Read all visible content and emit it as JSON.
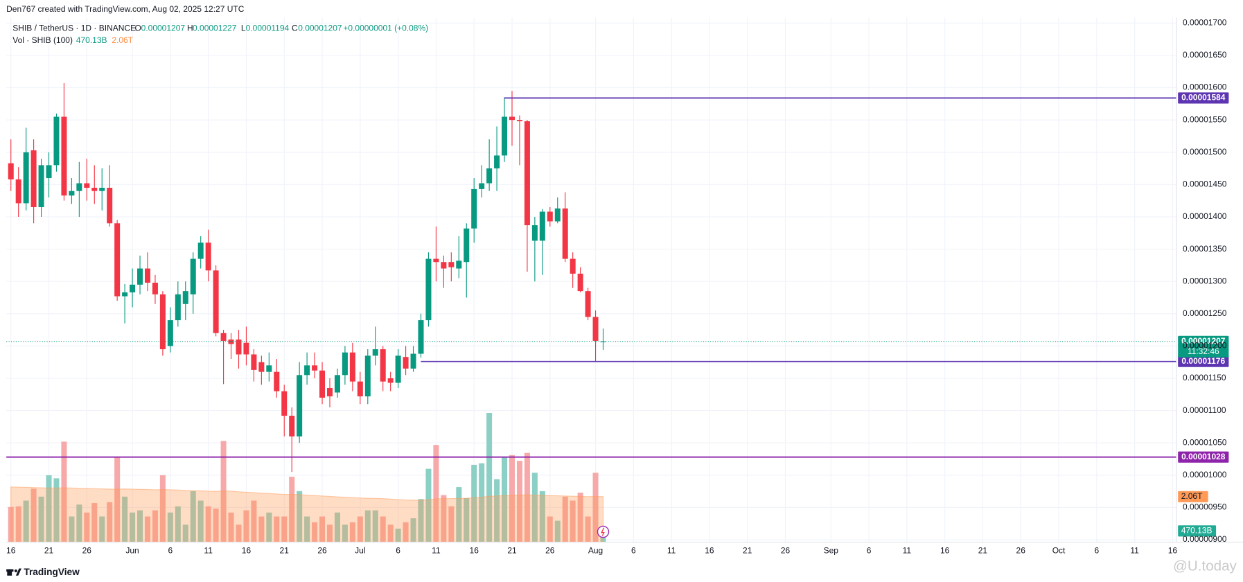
{
  "header": {
    "credit": "Den767 created with TradingView.com, Aug 02, 2025 12:27 UTC"
  },
  "legend": {
    "symbol": "SHIB / TetherUS · 1D · BINANCE",
    "o_key": "O",
    "o": "0.00001207",
    "h_key": "H",
    "h": "0.00001227",
    "l_key": "L",
    "l": "0.00001194",
    "c_key": "C",
    "c": "0.00001207",
    "change": "+0.00000001 (+0.08%)",
    "volume_name": "Vol · SHIB (100)",
    "volume": "470.13B",
    "volume_ma": "2.06T"
  },
  "chart_data": {
    "type": "candlestick",
    "up_color": "#089981",
    "down_color": "#f23645",
    "open": [
      1.483e-05,
      1.458e-05,
      1.421e-05,
      1.503e-05,
      1.415e-05,
      1.46e-05,
      1.48e-05,
      1.555e-05,
      1.433e-05,
      1.44e-05,
      1.452e-05,
      1.445e-05,
      1.44e-05,
      1.445e-05,
      1.39e-05,
      1.277e-05,
      1.283e-05,
      1.295e-05,
      1.32e-05,
      1.298e-05,
      1.28e-05,
      1.2e-05,
      1.24e-05,
      1.265e-05,
      1.28e-05,
      1.335e-05,
      1.36e-05,
      1.317e-05,
      1.22e-05,
      1.21e-05,
      1.21e-05,
      1.205e-05,
      1.187e-05,
      1.175e-05,
      1.16e-05,
      1.16e-05,
      1.13e-05,
      1.092e-05,
      1.06e-05,
      1.155e-05,
      1.17e-05,
      1.162e-05,
      1.135e-05,
      1.128e-05,
      1.155e-05,
      1.19e-05,
      1.145e-05,
      1.122e-05,
      1.185e-05,
      1.195e-05,
      1.15e-05,
      1.143e-05,
      1.183e-05,
      1.165e-05,
      1.188e-05,
      1.24e-05,
      1.335e-05,
      1.33e-05,
      1.33e-05,
      1.32e-05,
      1.33e-05,
      1.382e-05,
      1.443e-05,
      1.452e-05,
      1.475e-05,
      1.495e-05,
      1.555e-05,
      1.55e-05,
      1.548e-05,
      1.363e-05,
      1.363e-05,
      1.408e-05,
      1.393e-05,
      1.413e-05,
      1.335e-05,
      1.312e-05,
      1.285e-05,
      1.245e-05,
      1.206e-05
    ],
    "high": [
      1.52e-05,
      1.477e-05,
      1.538e-05,
      1.52e-05,
      1.49e-05,
      1.5e-05,
      1.56e-05,
      1.607e-05,
      1.46e-05,
      1.485e-05,
      1.49e-05,
      1.48e-05,
      1.475e-05,
      1.48e-05,
      1.395e-05,
      1.296e-05,
      1.32e-05,
      1.34e-05,
      1.345e-05,
      1.31e-05,
      1.285e-05,
      1.26e-05,
      1.3e-05,
      1.3e-05,
      1.345e-05,
      1.37e-05,
      1.38e-05,
      1.325e-05,
      1.225e-05,
      1.22e-05,
      1.225e-05,
      1.23e-05,
      1.195e-05,
      1.185e-05,
      1.19e-05,
      1.18e-05,
      1.14e-05,
      1.105e-05,
      1.175e-05,
      1.19e-05,
      1.19e-05,
      1.175e-05,
      1.15e-05,
      1.165e-05,
      1.2e-05,
      1.205e-05,
      1.16e-05,
      1.195e-05,
      1.23e-05,
      1.2e-05,
      1.16e-05,
      1.195e-05,
      1.2e-05,
      1.2e-05,
      1.25e-05,
      1.345e-05,
      1.385e-05,
      1.34e-05,
      1.345e-05,
      1.37e-05,
      1.39e-05,
      1.46e-05,
      1.48e-05,
      1.52e-05,
      1.54e-05,
      1.585e-05,
      1.595e-05,
      1.557e-05,
      1.55e-05,
      1.4e-05,
      1.412e-05,
      1.415e-05,
      1.43e-05,
      1.438e-05,
      1.345e-05,
      1.322e-05,
      1.29e-05,
      1.255e-05,
      1.227e-05
    ],
    "low": [
      1.44e-05,
      1.4e-05,
      1.41e-05,
      1.39e-05,
      1.4e-05,
      1.43e-05,
      1.47e-05,
      1.425e-05,
      1.42e-05,
      1.4e-05,
      1.425e-05,
      1.42e-05,
      1.41e-05,
      1.385e-05,
      1.27e-05,
      1.235e-05,
      1.26e-05,
      1.28e-05,
      1.285e-05,
      1.265e-05,
      1.185e-05,
      1.19e-05,
      1.23e-05,
      1.24e-05,
      1.25e-05,
      1.32e-05,
      1.3e-05,
      1.215e-05,
      1.141e-05,
      1.18e-05,
      1.165e-05,
      1.17e-05,
      1.145e-05,
      1.14e-05,
      1.145e-05,
      1.12e-05,
      1.06e-05,
      1.005e-05,
      1.05e-05,
      1.14e-05,
      1.15e-05,
      1.11e-05,
      1.105e-05,
      1.12e-05,
      1.14e-05,
      1.13e-05,
      1.11e-05,
      1.11e-05,
      1.17e-05,
      1.13e-05,
      1.13e-05,
      1.135e-05,
      1.155e-05,
      1.16e-05,
      1.182e-05,
      1.23e-05,
      1.3e-05,
      1.29e-05,
      1.3e-05,
      1.305e-05,
      1.275e-05,
      1.36e-05,
      1.43e-05,
      1.44e-05,
      1.44e-05,
      1.485e-05,
      1.51e-05,
      1.48e-05,
      1.315e-05,
      1.3e-05,
      1.31e-05,
      1.385e-05,
      1.39e-05,
      1.33e-05,
      1.29e-05,
      1.283e-05,
      1.24e-05,
      1.176e-05,
      1.194e-05
    ],
    "close": [
      1.458e-05,
      1.421e-05,
      1.5e-05,
      1.415e-05,
      1.48e-05,
      1.48e-05,
      1.555e-05,
      1.433e-05,
      1.44e-05,
      1.452e-05,
      1.445e-05,
      1.44e-05,
      1.445e-05,
      1.39e-05,
      1.277e-05,
      1.283e-05,
      1.295e-05,
      1.32e-05,
      1.298e-05,
      1.28e-05,
      1.195e-05,
      1.24e-05,
      1.28e-05,
      1.285e-05,
      1.335e-05,
      1.36e-05,
      1.317e-05,
      1.22e-05,
      1.208e-05,
      1.203e-05,
      1.187e-05,
      1.187e-05,
      1.163e-05,
      1.16e-05,
      1.17e-05,
      1.13e-05,
      1.092e-05,
      1.06e-05,
      1.155e-05,
      1.17e-05,
      1.162e-05,
      1.12e-05,
      1.122e-05,
      1.155e-05,
      1.19e-05,
      1.145e-05,
      1.122e-05,
      1.185e-05,
      1.195e-05,
      1.145e-05,
      1.143e-05,
      1.185e-05,
      1.165e-05,
      1.188e-05,
      1.24e-05,
      1.335e-05,
      1.33e-05,
      1.32e-05,
      1.322e-05,
      1.332e-05,
      1.382e-05,
      1.443e-05,
      1.452e-05,
      1.475e-05,
      1.495e-05,
      1.555e-05,
      1.55e-05,
      1.548e-05,
      1.387e-05,
      1.387e-05,
      1.408e-05,
      1.393e-05,
      1.413e-05,
      1.335e-05,
      1.312e-05,
      1.285e-05,
      1.245e-05,
      1.208e-05,
      1.207e-05
    ],
    "volume": {
      "values": [
        1590000000000.0,
        1620000000000.0,
        1880000000000.0,
        2420000000000.0,
        2060000000000.0,
        3030000000000.0,
        2890000000000.0,
        4550000000000.0,
        1160000000000.0,
        1700000000000.0,
        1340000000000.0,
        1770000000000.0,
        1160000000000.0,
        1810000000000.0,
        3860000000000.0,
        2060000000000.0,
        1340000000000.0,
        1440000000000.0,
        1160000000000.0,
        1440000000000.0,
        3030000000000.0,
        1340000000000.0,
        1620000000000.0,
        790000000000.0,
        2310000000000.0,
        1880000000000.0,
        1620000000000.0,
        1520000000000.0,
        4580000000000.0,
        1340000000000.0,
        790000000000.0,
        1440000000000.0,
        1880000000000.0,
        1160000000000.0,
        1340000000000.0,
        1160000000000.0,
        1160000000000.0,
        2960000000000.0,
        2310000000000.0,
        1160000000000.0,
        900000000000.0,
        1160000000000.0,
        790000000000.0,
        1340000000000.0,
        790000000000.0,
        900000000000.0,
        1160000000000.0,
        1440000000000.0,
        1440000000000.0,
        1160000000000.0,
        790000000000.0,
        610000000000.0,
        900000000000.0,
        1080000000000.0,
        1950000000000.0,
        3320000000000.0,
        4400000000000.0,
        2130000000000.0,
        1620000000000.0,
        2490000000000.0,
        1990000000000.0,
        3500000000000.0,
        3570000000000.0,
        5850000000000.0,
        2850000000000.0,
        3860000000000.0,
        3940000000000.0,
        3680000000000.0,
        4040000000000.0,
        3140000000000.0,
        2310000000000.0,
        1160000000000.0,
        970000000000.0,
        2060000000000.0,
        1880000000000.0,
        2240000000000.0,
        1160000000000.0,
        3140000000000.0,
        470130000000
      ],
      "ma": [
        2500000000000.0,
        2490000000000.0,
        2480000000000.0,
        2470000000000.0,
        2460000000000.0,
        2450000000000.0,
        2450000000000.0,
        2460000000000.0,
        2450000000000.0,
        2440000000000.0,
        2430000000000.0,
        2420000000000.0,
        2410000000000.0,
        2400000000000.0,
        2400000000000.0,
        2410000000000.0,
        2400000000000.0,
        2390000000000.0,
        2380000000000.0,
        2370000000000.0,
        2380000000000.0,
        2370000000000.0,
        2360000000000.0,
        2340000000000.0,
        2330000000000.0,
        2320000000000.0,
        2310000000000.0,
        2300000000000.0,
        2330000000000.0,
        2310000000000.0,
        2280000000000.0,
        2260000000000.0,
        2240000000000.0,
        2220000000000.0,
        2200000000000.0,
        2180000000000.0,
        2160000000000.0,
        2160000000000.0,
        2150000000000.0,
        2130000000000.0,
        2110000000000.0,
        2090000000000.0,
        2070000000000.0,
        2050000000000.0,
        2030000000000.0,
        2020000000000.0,
        2000000000000.0,
        1990000000000.0,
        1980000000000.0,
        1970000000000.0,
        1950000000000.0,
        1930000000000.0,
        1910000000000.0,
        1900000000000.0,
        1900000000000.0,
        1920000000000.0,
        1960000000000.0,
        1970000000000.0,
        1970000000000.0,
        1980000000000.0,
        1990000000000.0,
        2010000000000.0,
        2030000000000.0,
        2080000000000.0,
        2090000000000.0,
        2110000000000.0,
        2120000000000.0,
        2130000000000.0,
        2140000000000.0,
        2130000000000.0,
        2120000000000.0,
        2110000000000.0,
        2100000000000.0,
        2090000000000.0,
        2080000000000.0,
        2070000000000.0,
        2060000000000.0,
        2070000000000.0,
        2060000000000.0
      ],
      "ylim": [
        0,
        6100000000000.0
      ],
      "up_color": "#8ccfc4",
      "down_color": "#f7a8a8",
      "ma_color": "#ff9a57"
    },
    "xlim": [
      -0.6,
      153.5
    ],
    "xticks": [
      {
        "value": 0,
        "label": "16"
      },
      {
        "value": 5,
        "label": "21"
      },
      {
        "value": 10,
        "label": "26"
      },
      {
        "value": 16,
        "label": "Jun"
      },
      {
        "value": 21,
        "label": "6"
      },
      {
        "value": 26,
        "label": "11"
      },
      {
        "value": 31,
        "label": "16"
      },
      {
        "value": 36,
        "label": "21"
      },
      {
        "value": 41,
        "label": "26"
      },
      {
        "value": 46,
        "label": "Jul"
      },
      {
        "value": 51,
        "label": "6"
      },
      {
        "value": 56,
        "label": "11"
      },
      {
        "value": 61,
        "label": "16"
      },
      {
        "value": 66,
        "label": "21"
      },
      {
        "value": 71,
        "label": "26"
      },
      {
        "value": 77,
        "label": "Aug"
      },
      {
        "value": 82,
        "label": "6"
      },
      {
        "value": 87,
        "label": "11"
      },
      {
        "value": 92,
        "label": "16"
      },
      {
        "value": 97,
        "label": "21"
      },
      {
        "value": 102,
        "label": "26"
      },
      {
        "value": 108,
        "label": "Sep"
      },
      {
        "value": 113,
        "label": "6"
      },
      {
        "value": 118,
        "label": "11"
      },
      {
        "value": 123,
        "label": "16"
      },
      {
        "value": 128,
        "label": "21"
      },
      {
        "value": 133,
        "label": "26"
      },
      {
        "value": 138,
        "label": "Oct"
      },
      {
        "value": 143,
        "label": "6"
      },
      {
        "value": 148,
        "label": "11"
      },
      {
        "value": 153,
        "label": "16"
      }
    ],
    "ylim": [
      8.963e-06,
      1.7086e-05
    ],
    "yticks": [
      {
        "value": 1.7e-05,
        "label": "0.00001700"
      },
      {
        "value": 1.65e-05,
        "label": "0.00001650"
      },
      {
        "value": 1.6e-05,
        "label": "0.00001600"
      },
      {
        "value": 1.55e-05,
        "label": "0.00001550"
      },
      {
        "value": 1.5e-05,
        "label": "0.00001500"
      },
      {
        "value": 1.45e-05,
        "label": "0.00001450"
      },
      {
        "value": 1.4e-05,
        "label": "0.00001400"
      },
      {
        "value": 1.35e-05,
        "label": "0.00001350"
      },
      {
        "value": 1.3e-05,
        "label": "0.00001300"
      },
      {
        "value": 1.25e-05,
        "label": "0.00001250"
      },
      {
        "value": 1.2e-05,
        "label": "0.00001200"
      },
      {
        "value": 1.15e-05,
        "label": "0.00001150"
      },
      {
        "value": 1.1e-05,
        "label": "0.00001100"
      },
      {
        "value": 1.05e-05,
        "label": "0.00001050"
      },
      {
        "value": 1e-05,
        "label": "0.00001000"
      },
      {
        "value": 9.5e-06,
        "label": "0.00000950"
      },
      {
        "value": 9e-06,
        "label": "0.00000900"
      }
    ],
    "grid": true,
    "levels": [
      {
        "value": 1.584e-05,
        "color": "#5e35b1"
      },
      {
        "value": 1.176e-05,
        "color": "#5e35b1"
      },
      {
        "value": 1.028e-05,
        "color": "#8e24aa"
      }
    ],
    "last_price": 1.207e-05,
    "countdown": "11:32:46"
  },
  "footer": {
    "brand": "TradingView",
    "watermark": "@U.today"
  }
}
